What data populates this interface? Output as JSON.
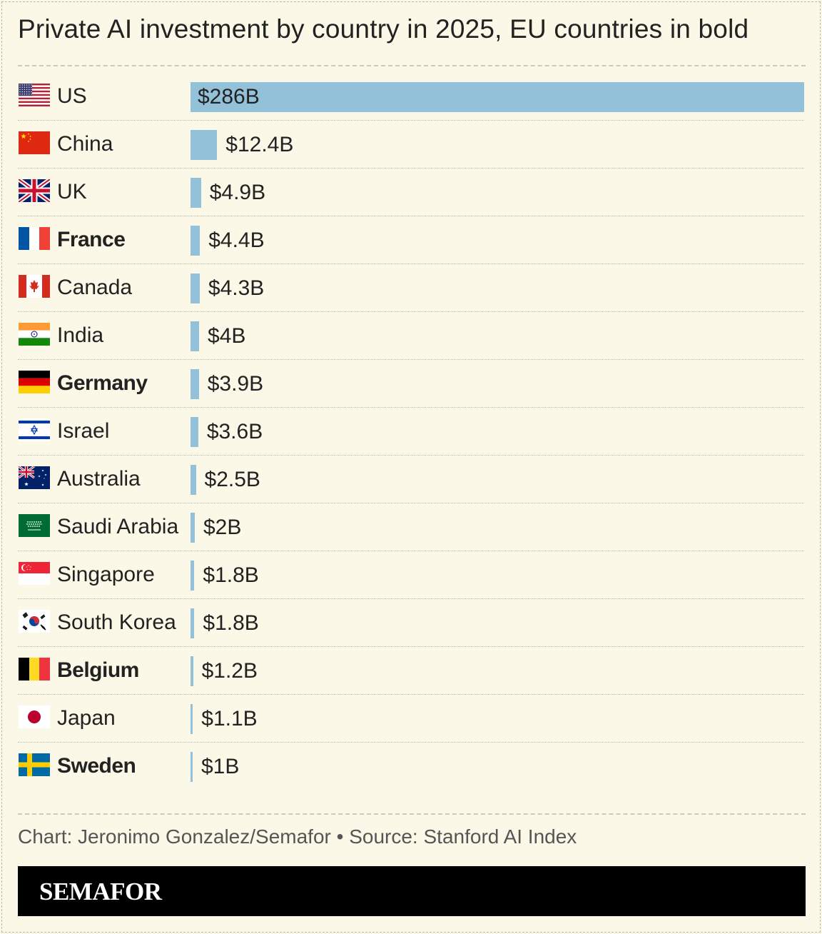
{
  "chart_data": {
    "type": "bar",
    "orientation": "horizontal",
    "title": "Private AI investment by country in 2025, EU countries in bold",
    "categories": [
      "US",
      "China",
      "UK",
      "France",
      "Canada",
      "India",
      "Germany",
      "Israel",
      "Australia",
      "Saudi Arabia",
      "Singapore",
      "South Korea",
      "Belgium",
      "Japan",
      "Sweden"
    ],
    "values": [
      286,
      12.4,
      4.9,
      4.4,
      4.3,
      4,
      3.9,
      3.6,
      2.5,
      2,
      1.8,
      1.8,
      1.2,
      1.1,
      1
    ],
    "value_labels": [
      "$286B",
      "$12.4B",
      "$4.9B",
      "$4.4B",
      "$4.3B",
      "$4B",
      "$3.9B",
      "$3.6B",
      "$2.5B",
      "$2B",
      "$1.8B",
      "$1.8B",
      "$1.2B",
      "$1.1B",
      "$1B"
    ],
    "eu": [
      false,
      false,
      false,
      true,
      false,
      false,
      true,
      false,
      false,
      false,
      false,
      false,
      true,
      false,
      true
    ],
    "flags": [
      "us-flag-icon",
      "china-flag-icon",
      "uk-flag-icon",
      "france-flag-icon",
      "canada-flag-icon",
      "india-flag-icon",
      "germany-flag-icon",
      "israel-flag-icon",
      "australia-flag-icon",
      "saudi-arabia-flag-icon",
      "singapore-flag-icon",
      "south-korea-flag-icon",
      "belgium-flag-icon",
      "japan-flag-icon",
      "sweden-flag-icon"
    ],
    "unit": "billion USD",
    "xlim": [
      0,
      286
    ],
    "grid": false,
    "bar_color": "#92c1d9"
  },
  "credit": "Chart: Jeronimo Gonzalez/Semafor • Source: Stanford AI Index",
  "brand": "SEMAFOR",
  "colors": {
    "background": "#fbf8e8",
    "bar": "#92c1d9",
    "brand_bar": "#000000"
  }
}
